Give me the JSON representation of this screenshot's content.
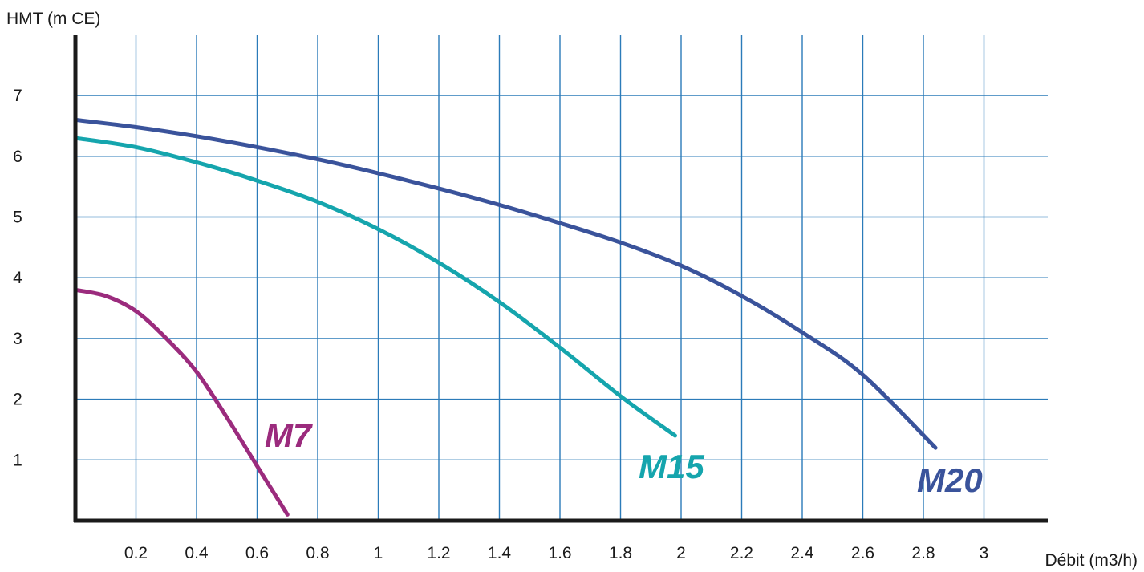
{
  "chart_data": {
    "type": "line",
    "xlabel": "Débit (m3/h)",
    "ylabel": "HMT (m CE)",
    "xlim": [
      0,
      3.2
    ],
    "ylim": [
      0,
      8
    ],
    "grid": true,
    "x_ticks": [
      0.2,
      0.4,
      0.6,
      0.8,
      1,
      1.2,
      1.4,
      1.6,
      1.8,
      2,
      2.2,
      2.4,
      2.6,
      2.8,
      3
    ],
    "y_ticks": [
      1,
      2,
      3,
      4,
      5,
      6,
      7
    ],
    "series": [
      {
        "name": "M7",
        "color": "#9b2b7d",
        "x": [
          0,
          0.1,
          0.2,
          0.3,
          0.4,
          0.5,
          0.6,
          0.7
        ],
        "y": [
          3.8,
          3.7,
          3.45,
          3.0,
          2.45,
          1.7,
          0.9,
          0.1
        ]
      },
      {
        "name": "M15",
        "color": "#15a5ad",
        "x": [
          0,
          0.2,
          0.4,
          0.6,
          0.8,
          1.0,
          1.2,
          1.4,
          1.6,
          1.8,
          1.98
        ],
        "y": [
          6.3,
          6.15,
          5.9,
          5.6,
          5.25,
          4.8,
          4.25,
          3.6,
          2.85,
          2.05,
          1.4
        ]
      },
      {
        "name": "M20",
        "color": "#3a539b",
        "x": [
          0,
          0.2,
          0.4,
          0.6,
          0.8,
          1.0,
          1.2,
          1.4,
          1.6,
          1.8,
          2.0,
          2.2,
          2.4,
          2.6,
          2.84
        ],
        "y": [
          6.6,
          6.48,
          6.33,
          6.15,
          5.95,
          5.72,
          5.47,
          5.2,
          4.9,
          4.58,
          4.2,
          3.7,
          3.1,
          2.4,
          1.2
        ]
      }
    ]
  }
}
